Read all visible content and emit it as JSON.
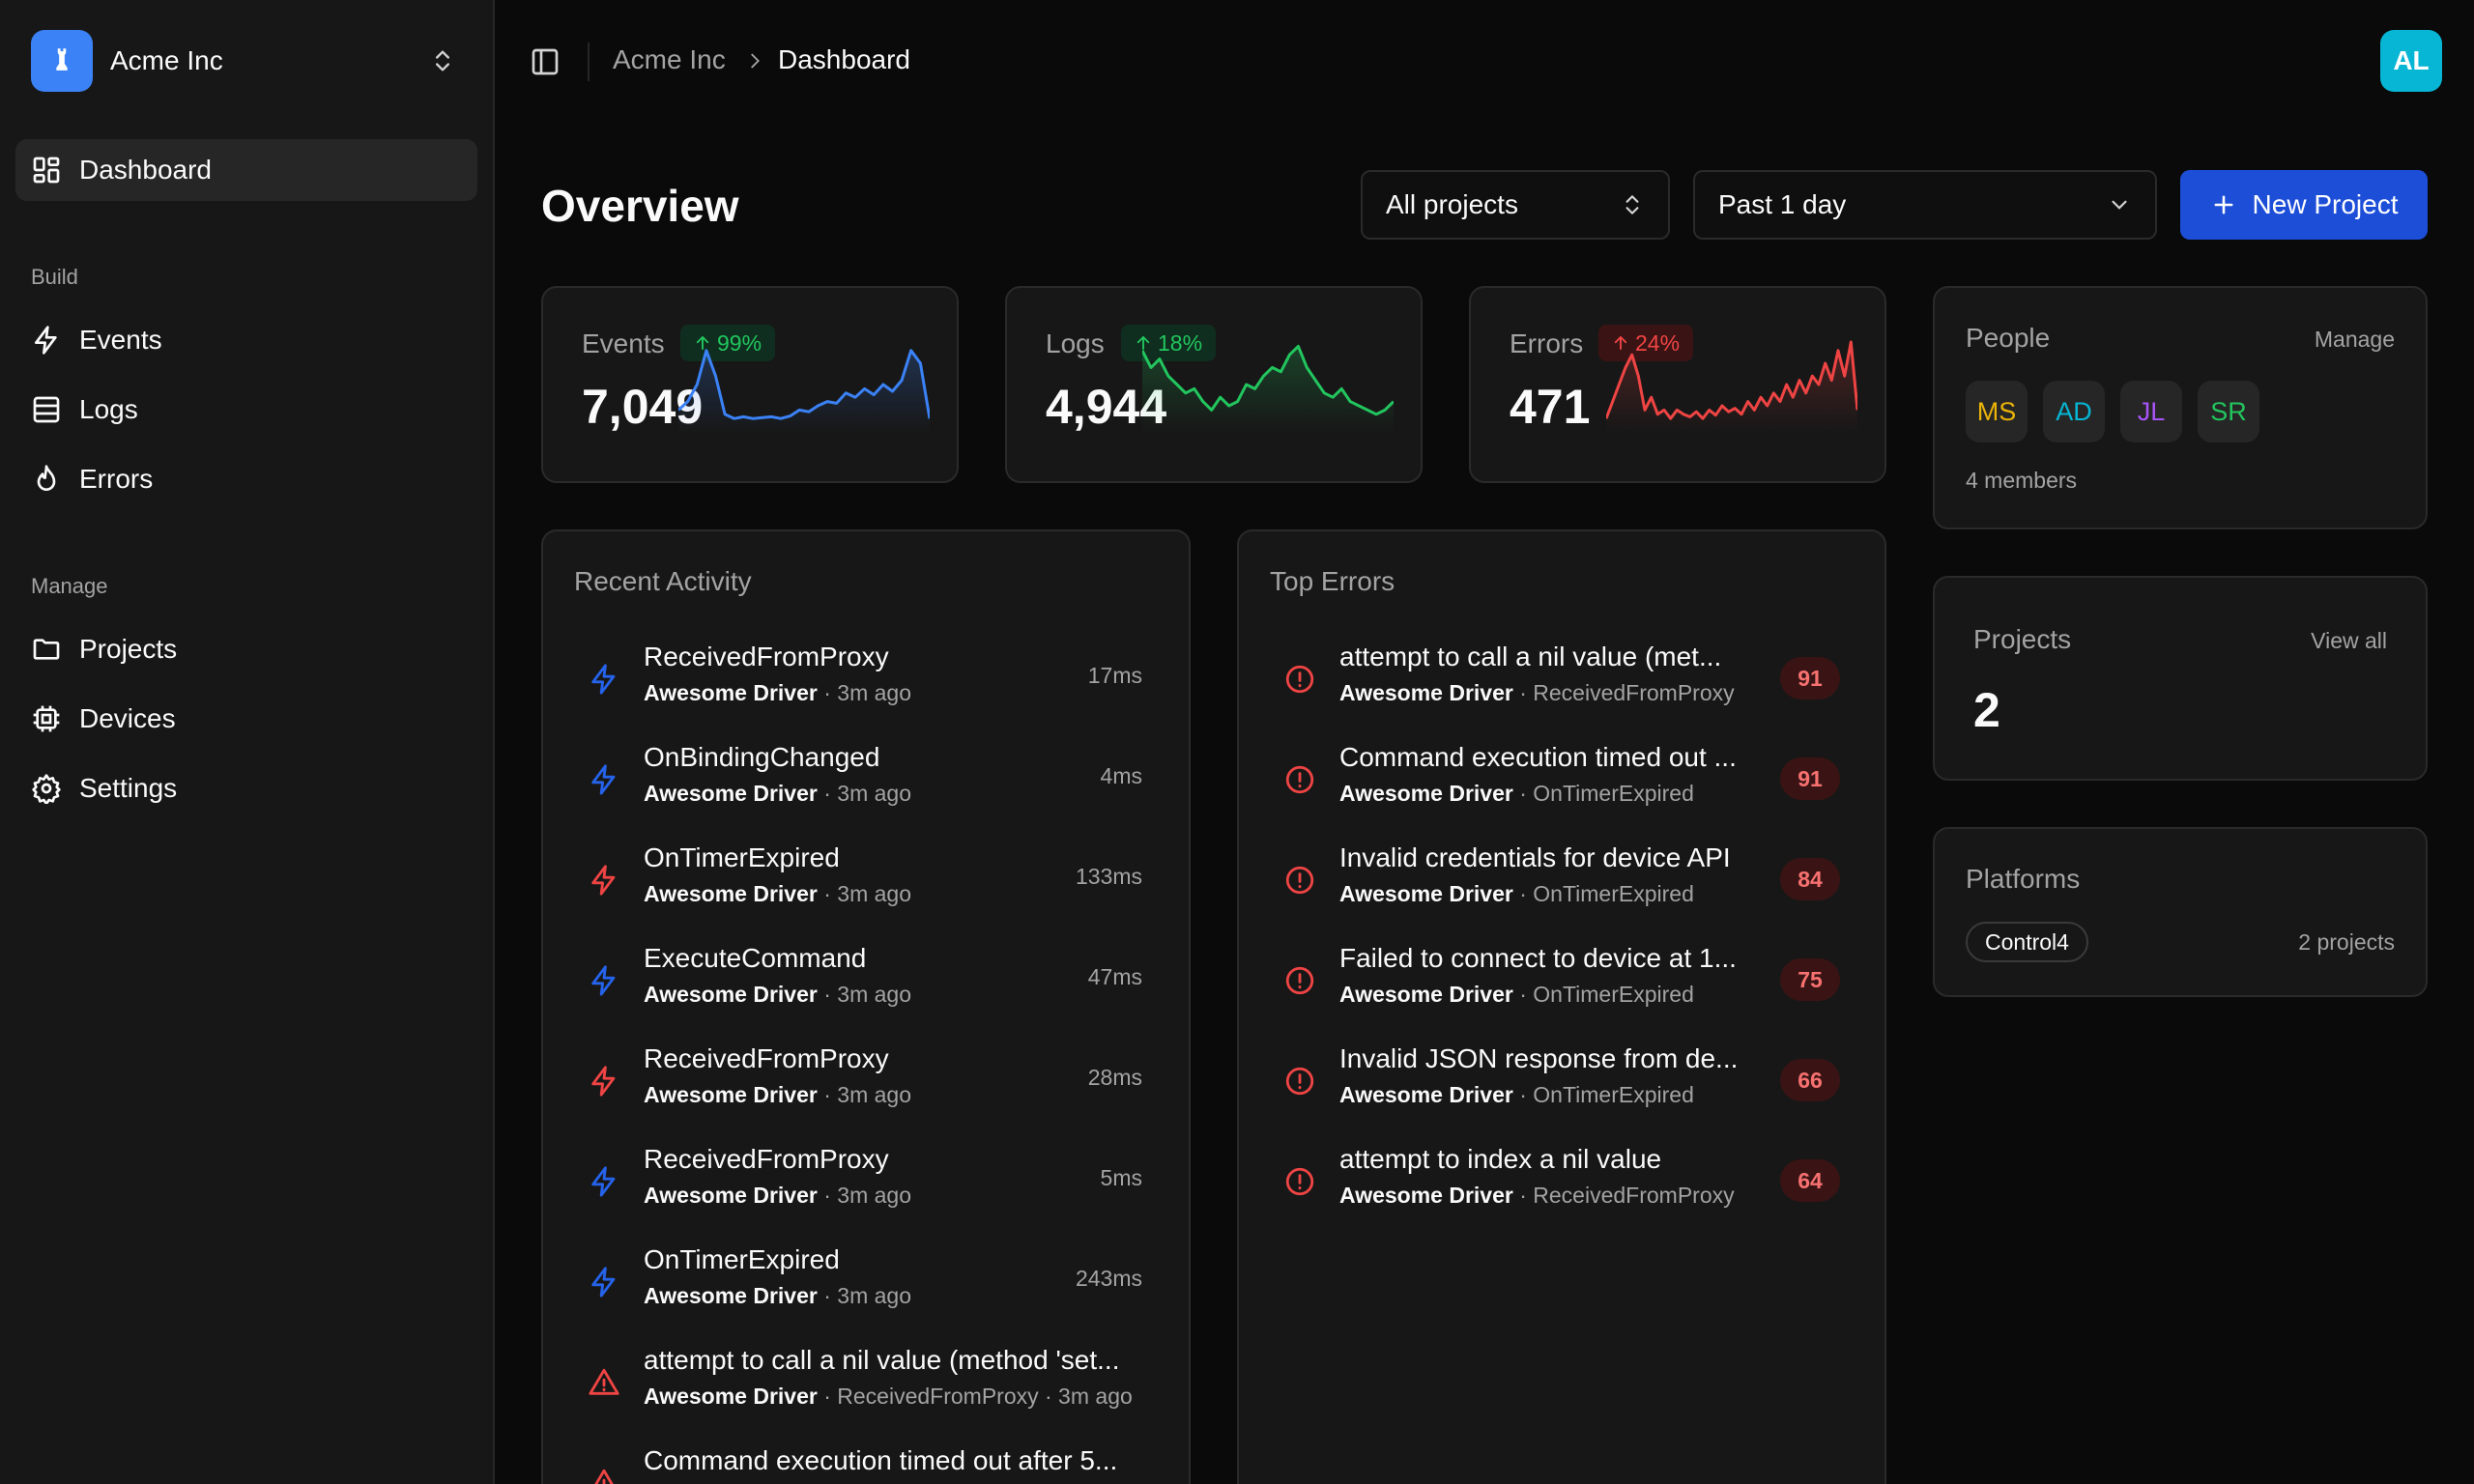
{
  "org": {
    "name": "Acme Inc",
    "logo_icon": "chess-rook-icon"
  },
  "user": {
    "initials": "AL"
  },
  "sidebar": {
    "dashboard": "Dashboard",
    "build_label": "Build",
    "build": [
      {
        "label": "Events",
        "icon": "zap-icon"
      },
      {
        "label": "Logs",
        "icon": "list-icon"
      },
      {
        "label": "Errors",
        "icon": "flame-icon"
      }
    ],
    "manage_label": "Manage",
    "manage": [
      {
        "label": "Projects",
        "icon": "folder-icon"
      },
      {
        "label": "Devices",
        "icon": "cpu-icon"
      },
      {
        "label": "Settings",
        "icon": "gear-icon"
      }
    ]
  },
  "breadcrumb": {
    "root": "Acme Inc",
    "current": "Dashboard"
  },
  "header": {
    "title": "Overview",
    "project_filter": "All projects",
    "time_filter": "Past 1 day",
    "new_button": "New Project"
  },
  "stats": [
    {
      "label": "Events",
      "change": "99%",
      "value": "7,049",
      "color": "#3b82f6",
      "series": [
        0.2,
        0.3,
        0.5,
        0.9,
        0.6,
        0.15,
        0.1,
        0.12,
        0.1,
        0.11,
        0.12,
        0.1,
        0.13,
        0.2,
        0.18,
        0.25,
        0.3,
        0.28,
        0.4,
        0.35,
        0.45,
        0.38,
        0.5,
        0.42,
        0.55,
        0.9,
        0.75,
        0.1
      ]
    },
    {
      "label": "Logs",
      "change": "18%",
      "value": "4,944",
      "color": "#22c55e",
      "series": [
        0.9,
        0.7,
        0.8,
        0.6,
        0.5,
        0.4,
        0.45,
        0.3,
        0.2,
        0.35,
        0.25,
        0.3,
        0.5,
        0.45,
        0.6,
        0.7,
        0.65,
        0.85,
        0.95,
        0.7,
        0.55,
        0.4,
        0.35,
        0.45,
        0.3,
        0.25,
        0.2,
        0.15,
        0.2,
        0.3
      ]
    },
    {
      "label": "Errors",
      "change": "24%",
      "value": "471",
      "color": "#ef4444",
      "series": [
        0.1,
        0.3,
        0.5,
        0.7,
        0.85,
        0.6,
        0.2,
        0.35,
        0.15,
        0.2,
        0.1,
        0.2,
        0.15,
        0.12,
        0.18,
        0.1,
        0.2,
        0.14,
        0.25,
        0.18,
        0.22,
        0.15,
        0.3,
        0.2,
        0.35,
        0.25,
        0.4,
        0.3,
        0.5,
        0.35,
        0.55,
        0.4,
        0.6,
        0.5,
        0.75,
        0.55,
        0.9,
        0.6,
        1.0,
        0.2
      ]
    }
  ],
  "people": {
    "title": "People",
    "manage": "Manage",
    "members": [
      {
        "initials": "MS",
        "color": "#eab308"
      },
      {
        "initials": "AD",
        "color": "#06b6d4"
      },
      {
        "initials": "JL",
        "color": "#a855f7"
      },
      {
        "initials": "SR",
        "color": "#22c55e"
      }
    ],
    "count_text": "4 members"
  },
  "projects": {
    "title": "Projects",
    "link": "View all",
    "count": "2"
  },
  "platforms": {
    "title": "Platforms",
    "name": "Control4",
    "count_text": "2 projects"
  },
  "recent_activity": {
    "title": "Recent Activity",
    "items": [
      {
        "title": "ReceivedFromProxy",
        "driver": "Awesome Driver",
        "meta": " · 3m ago",
        "time": "17ms",
        "kind": "event",
        "color": "#2563eb"
      },
      {
        "title": "OnBindingChanged",
        "driver": "Awesome Driver",
        "meta": " · 3m ago",
        "time": "4ms",
        "kind": "event",
        "color": "#2563eb"
      },
      {
        "title": "OnTimerExpired",
        "driver": "Awesome Driver",
        "meta": " · 3m ago",
        "time": "133ms",
        "kind": "event",
        "color": "#ef4444"
      },
      {
        "title": "ExecuteCommand",
        "driver": "Awesome Driver",
        "meta": " · 3m ago",
        "time": "47ms",
        "kind": "event",
        "color": "#2563eb"
      },
      {
        "title": "ReceivedFromProxy",
        "driver": "Awesome Driver",
        "meta": " · 3m ago",
        "time": "28ms",
        "kind": "event",
        "color": "#ef4444"
      },
      {
        "title": "ReceivedFromProxy",
        "driver": "Awesome Driver",
        "meta": " · 3m ago",
        "time": "5ms",
        "kind": "event",
        "color": "#2563eb"
      },
      {
        "title": "OnTimerExpired",
        "driver": "Awesome Driver",
        "meta": " · 3m ago",
        "time": "243ms",
        "kind": "event",
        "color": "#2563eb"
      },
      {
        "title": "attempt to call a nil value (method 'set...",
        "driver": "Awesome Driver",
        "meta": " · ReceivedFromProxy · 3m ago",
        "time": "",
        "kind": "warning",
        "color": "#ef4444"
      },
      {
        "title": "Command execution timed out after 5...",
        "driver": "",
        "meta": "",
        "time": "",
        "kind": "warning",
        "color": "#ef4444"
      }
    ]
  },
  "top_errors": {
    "title": "Top Errors",
    "items": [
      {
        "title": "attempt to call a nil value (met...",
        "driver": "Awesome Driver",
        "meta": " · ReceivedFromProxy",
        "count": "91"
      },
      {
        "title": "Command execution timed out ...",
        "driver": "Awesome Driver",
        "meta": " · OnTimerExpired",
        "count": "91"
      },
      {
        "title": "Invalid credentials for device API",
        "driver": "Awesome Driver",
        "meta": " · OnTimerExpired",
        "count": "84"
      },
      {
        "title": "Failed to connect to device at 1...",
        "driver": "Awesome Driver",
        "meta": " · OnTimerExpired",
        "count": "75"
      },
      {
        "title": "Invalid JSON response from de...",
        "driver": "Awesome Driver",
        "meta": " · OnTimerExpired",
        "count": "66"
      },
      {
        "title": "attempt to index a nil value",
        "driver": "Awesome Driver",
        "meta": " · ReceivedFromProxy",
        "count": "64"
      }
    ]
  }
}
